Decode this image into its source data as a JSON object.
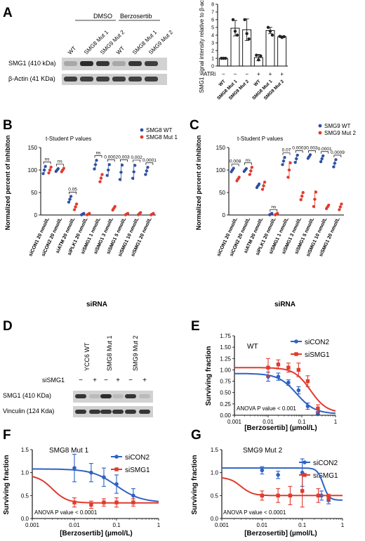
{
  "panels": {
    "A": "A",
    "B": "B",
    "C": "C",
    "D": "D",
    "E": "E",
    "F": "F",
    "G": "G"
  },
  "western_a": {
    "group_dmso": "DMSO",
    "group_berzo": "Berzosertib",
    "lanes": [
      "WT",
      "SMG8 Mut 1",
      "SMG9 Mut 2",
      "WT",
      "SMG8 Mut 1",
      "SMG9 Mut 2"
    ],
    "rows": [
      "SMG1 (410 kDa)",
      "β-Actin (41 KDa)"
    ],
    "smg1_band_darkness": [
      0.25,
      0.9,
      0.85,
      0.25,
      0.85,
      0.8
    ],
    "actin_band_darkness": [
      0.8,
      0.8,
      0.8,
      0.8,
      0.8,
      0.8
    ]
  },
  "western_d": {
    "lines": [
      "YCC6 WT",
      "SMG8 Mut 1",
      "SMG9 Mut 2"
    ],
    "sirna_label": "siSMG1",
    "sirna_signs": [
      "−",
      "+",
      "−",
      "+",
      "−",
      "+"
    ],
    "rows": [
      "SMG1 (410 KDa)",
      "Vinculin (124 Kda)"
    ],
    "smg1_band_darkness": [
      0.85,
      0.15,
      0.9,
      0.15,
      0.85,
      0.15
    ],
    "vinculin_band_darkness": [
      0.85,
      0.85,
      0.85,
      0.85,
      0.85,
      0.85
    ]
  },
  "chart_data": [
    {
      "id": "A",
      "type": "bar",
      "ylabel": "SMG1 signal intensity relative to β-actin",
      "ylim": [
        0,
        8
      ],
      "yticks": [
        0,
        1,
        2,
        3,
        4,
        5,
        6,
        7,
        8
      ],
      "categories": [
        "WT",
        "SMG8 Mut 1",
        "SMG9 Mut 2",
        "WT",
        "SMG8 Mut 1",
        "SMG9 Mut 2"
      ],
      "treatment_label": "ATRi",
      "treatment": [
        "−",
        "−",
        "−",
        "+",
        "+",
        "+"
      ],
      "values": [
        1.0,
        4.9,
        4.7,
        1.1,
        4.6,
        3.8
      ],
      "errors": [
        0.05,
        1.0,
        1.4,
        0.4,
        0.4,
        0.1
      ],
      "points": [
        [
          1,
          1,
          1
        ],
        [
          6,
          4.5,
          4
        ],
        [
          6,
          4.2,
          3.5
        ],
        [
          1.4,
          0.8,
          1.3
        ],
        [
          5,
          4.5,
          4
        ],
        [
          3.85,
          3.7,
          3.8
        ]
      ],
      "bar_filled": [
        true,
        false,
        false,
        true,
        false,
        false
      ]
    },
    {
      "id": "B",
      "type": "scatter",
      "xlabel": "siRNA",
      "ylabel": "Normalized percent of inhibiton",
      "ylim": [
        0,
        150
      ],
      "yticks": [
        0,
        50,
        100,
        150
      ],
      "title": "t-Student P values",
      "categories": [
        "siCON1 20 nmol/L",
        "siCON2 20 nmol/L",
        "siATM 20 nmol/L",
        "siPLK1 20 nmol/L",
        "siSMG1 1 nmol/L",
        "siSMG1 3 nmol/L",
        "siSMG1 5 nmol/L",
        "siSMG1 10 nmol/L",
        "siSMG1 20 nmol/L"
      ],
      "series": [
        {
          "name": "SMG8 WT",
          "color": "#2e4fa3",
          "means": [
            100,
            100,
            35,
            2,
            112,
            100,
            95,
            96,
            98
          ],
          "errors": [
            10,
            4,
            8,
            2,
            12,
            15,
            20,
            18,
            10
          ]
        },
        {
          "name": "SMG8 Mut 1",
          "color": "#e03b2e",
          "means": [
            100,
            100,
            18,
            2,
            82,
            15,
            2,
            3,
            2
          ],
          "errors": [
            8,
            5,
            8,
            2,
            10,
            5,
            2,
            3,
            2
          ]
        }
      ],
      "pvalues": [
        "ns",
        "ns",
        "0.05",
        "",
        "ns",
        "0.0002",
        "0.003",
        "0.002",
        "0.0001"
      ]
    },
    {
      "id": "C",
      "type": "scatter",
      "xlabel": "siRNA",
      "ylabel": "Normalized percent of inhibiton",
      "ylim": [
        0,
        150
      ],
      "yticks": [
        0,
        50,
        100,
        150
      ],
      "title": "t-Student P values",
      "categories": [
        "siCON1 20 nmol/L",
        "siCON2 20 nmol/L",
        "siATM 20 nmol/L",
        "siPLK1 20 nmol/L",
        "siSMG1 1 nmol/L",
        "siSMG1 3 nmol/L",
        "siSMG1 5 nmol/L",
        "siSMG1 10 nmol/L",
        "siSMG1 20 nmol/L"
      ],
      "series": [
        {
          "name": "SMG9 WT",
          "color": "#2e4fa3",
          "means": [
            100,
            100,
            65,
            2,
            120,
            125,
            130,
            125,
            115
          ],
          "errors": [
            5,
            4,
            5,
            2,
            10,
            10,
            5,
            8,
            10
          ]
        },
        {
          "name": "SMG9 Mut 2",
          "color": "#e03b2e",
          "means": [
            80,
            98,
            65,
            2,
            100,
            42,
            35,
            18,
            18
          ],
          "errors": [
            5,
            10,
            10,
            2,
            20,
            10,
            20,
            5,
            8
          ]
        }
      ],
      "pvalues": [
        "0.008",
        "ns",
        "",
        "ns",
        "0.07",
        "0.0003",
        "0.003",
        "0.0001",
        "0.0009"
      ]
    },
    {
      "id": "E",
      "type": "line",
      "subtitle": "WT",
      "xlabel": "[Berzosertib] (µmol/L)",
      "ylabel": "Surviving fraction",
      "xscale": "log",
      "xlim": [
        0.001,
        1
      ],
      "xticks": [
        "0.001",
        "0.01",
        "0.1",
        "1"
      ],
      "ylim": [
        0,
        1.75
      ],
      "yticks": [
        "0.00",
        "0.25",
        "0.50",
        "0.75",
        "1.00",
        "1.25",
        "1.50",
        "1.75"
      ],
      "annotation": "ANOVA P value < 0.001",
      "series": [
        {
          "name": "siCON2",
          "color": "#2e62c4",
          "x": [
            0.01,
            0.02,
            0.04,
            0.08,
            0.15,
            0.3
          ],
          "y": [
            0.85,
            0.85,
            0.72,
            0.55,
            0.2,
            0.05
          ],
          "err": [
            0.1,
            0.08,
            0.06,
            0.08,
            0.07,
            0.03
          ],
          "top": 0.92,
          "bottom": 0.03,
          "ec50": 0.07,
          "hill": 1.6
        },
        {
          "name": "siSMG1",
          "color": "#e03b2e",
          "x": [
            0.01,
            0.02,
            0.04,
            0.08,
            0.15,
            0.3
          ],
          "y": [
            1.05,
            1.12,
            1.05,
            1.0,
            0.75,
            0.15
          ],
          "err": [
            0.2,
            0.1,
            0.1,
            0.15,
            0.12,
            0.08
          ],
          "top": 1.05,
          "bottom": 0.05,
          "ec50": 0.18,
          "hill": 1.8
        }
      ]
    },
    {
      "id": "F",
      "type": "line",
      "subtitle": "SMG8 Mut 1",
      "xlabel": "[Berzosertib] (µmol/L)",
      "ylabel": "Surviving fraction",
      "xscale": "log",
      "xlim": [
        0.001,
        1
      ],
      "xticks": [
        "0.001",
        "0.01",
        "0.1",
        "1"
      ],
      "ylim": [
        0,
        1.5
      ],
      "yticks": [
        "0.0",
        "0.5",
        "1.0",
        "1.5"
      ],
      "annotation": "ANOVA P value < 0.0001",
      "series": [
        {
          "name": "siCON2",
          "color": "#2e62c4",
          "x": [
            0.01,
            0.025,
            0.05,
            0.1,
            0.25
          ],
          "y": [
            1.1,
            1.0,
            0.9,
            0.75,
            0.5
          ],
          "err": [
            0.3,
            0.2,
            0.2,
            0.2,
            0.15
          ],
          "top": 1.08,
          "bottom": 0.35,
          "ec50": 0.1,
          "hill": 1.5
        },
        {
          "name": "siSMG1",
          "color": "#e03b2e",
          "x": [
            0.01,
            0.025,
            0.05,
            0.1,
            0.25
          ],
          "y": [
            0.35,
            0.3,
            0.35,
            0.35,
            0.35
          ],
          "err": [
            0.1,
            0.08,
            0.08,
            0.1,
            0.08
          ],
          "top": 0.95,
          "bottom": 0.34,
          "ec50": 0.003,
          "hill": 2.5
        }
      ]
    },
    {
      "id": "G",
      "type": "line",
      "subtitle": "SMG9 Mut 2",
      "xlabel": "[Berzosertib] (µmol/L)",
      "ylabel": "Surviving fraction",
      "xscale": "log",
      "xlim": [
        0.001,
        1
      ],
      "xticks": [
        "0.001",
        "0.01",
        "0.1",
        "1"
      ],
      "ylim": [
        0,
        1.5
      ],
      "yticks": [
        "0.0",
        "0.5",
        "1.0",
        "1.5"
      ],
      "annotation": "ANOVA P value < 0.0001",
      "series": [
        {
          "name": "siCON2",
          "color": "#2e62c4",
          "x": [
            0.01,
            0.025,
            0.1,
            0.3,
            0.45
          ],
          "y": [
            1.05,
            0.95,
            1.0,
            0.5,
            0.4
          ],
          "err": [
            0.08,
            0.08,
            0.3,
            0.1,
            0.08
          ],
          "top": 1.1,
          "bottom": 0.4,
          "ec50": 0.33,
          "hill": 6
        },
        {
          "name": "siSMG1",
          "color": "#e03b2e",
          "x": [
            0.01,
            0.025,
            0.05,
            0.1,
            0.25,
            0.45
          ],
          "y": [
            0.5,
            0.5,
            0.5,
            0.6,
            0.5,
            0.45
          ],
          "err": [
            0.1,
            0.15,
            0.2,
            0.35,
            0.15,
            0.08
          ],
          "top": 0.9,
          "bottom": 0.5,
          "ec50": 0.003,
          "hill": 3
        }
      ]
    }
  ]
}
